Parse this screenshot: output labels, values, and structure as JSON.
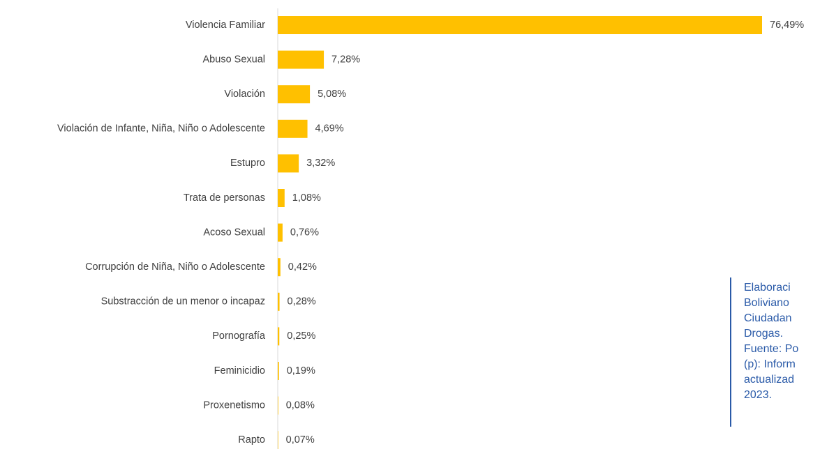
{
  "chart_data": {
    "type": "bar",
    "orientation": "horizontal",
    "categories": [
      "Violencia Familiar",
      "Abuso Sexual",
      "Violación",
      "Violación de Infante, Niña, Niño o Adolescente",
      "Estupro",
      "Trata de personas",
      "Acoso Sexual",
      "Corrupción de Niña, Niño o Adolescente",
      "Substracción de un menor o incapaz",
      "Pornografía",
      "Feminicidio",
      "Proxenetismo",
      "Rapto"
    ],
    "values": [
      76.49,
      7.28,
      5.08,
      4.69,
      3.32,
      1.08,
      0.76,
      0.42,
      0.28,
      0.25,
      0.19,
      0.08,
      0.07
    ],
    "value_labels": [
      "76,49%",
      "7,28%",
      "5,08%",
      "4,69%",
      "3,32%",
      "1,08%",
      "0,76%",
      "0,42%",
      "0,28%",
      "0,25%",
      "0,19%",
      "0,08%",
      "0,07%"
    ],
    "color": "#ffc000"
  },
  "note": {
    "lines": [
      "Elaboraci",
      "Boliviano",
      "Ciudadan",
      "Drogas.",
      "Fuente: Po",
      "(p): Inform",
      "actualizad",
      "2023."
    ]
  }
}
